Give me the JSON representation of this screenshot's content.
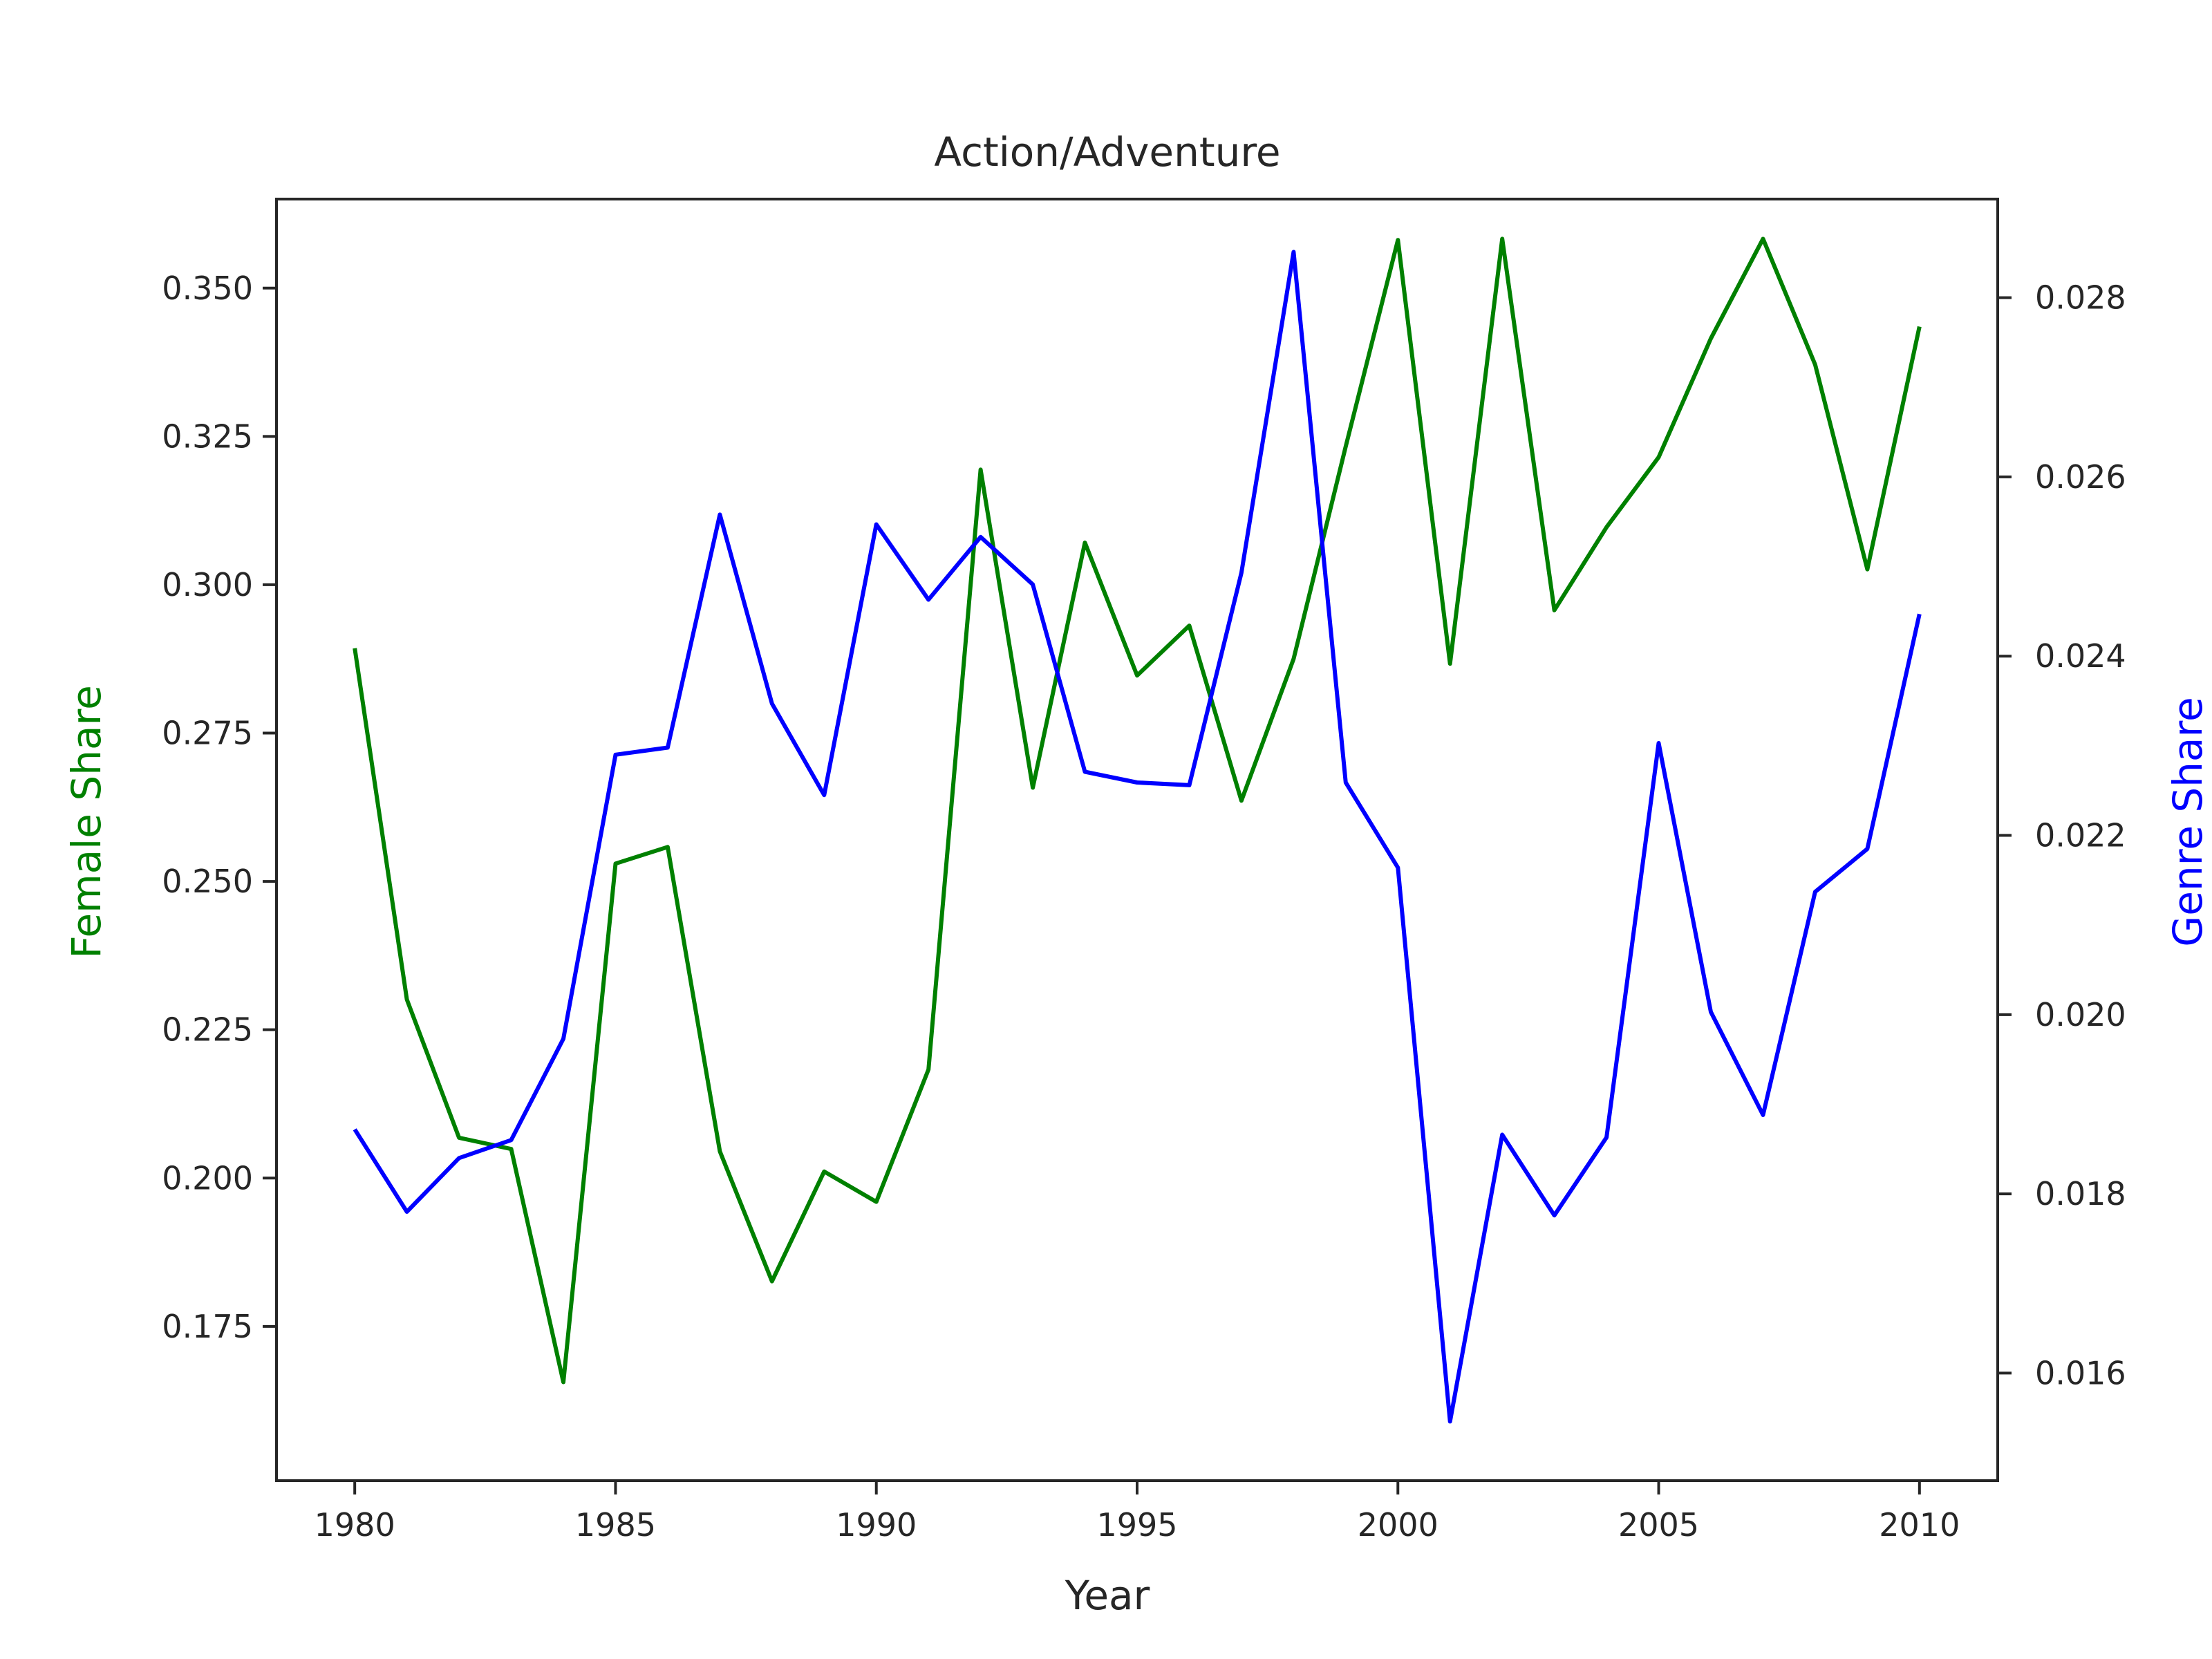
{
  "chart_data": {
    "type": "line",
    "title": "Action/Adventure",
    "xlabel": "Year",
    "ylabel_left": "Female Share",
    "ylabel_right": "Genre Share",
    "xlim": [
      1978.5,
      2011.5
    ],
    "ylim_left": [
      0.149,
      0.365
    ],
    "ylim_right": [
      0.0148,
      0.0291
    ],
    "xticks": [
      1980,
      1985,
      1990,
      1995,
      2000,
      2005,
      2010
    ],
    "yticks_left": [
      "0.175",
      "0.200",
      "0.225",
      "0.250",
      "0.275",
      "0.300",
      "0.325",
      "0.350"
    ],
    "yticks_right": [
      "0.016",
      "0.018",
      "0.020",
      "0.022",
      "0.024",
      "0.026",
      "0.028"
    ],
    "grid": false,
    "x": [
      1980,
      1981,
      1982,
      1983,
      1984,
      1985,
      1986,
      1987,
      1988,
      1989,
      1990,
      1991,
      1992,
      1993,
      1994,
      1995,
      1996,
      1997,
      1998,
      1999,
      2000,
      2001,
      2002,
      2003,
      2004,
      2005,
      2006,
      2007,
      2008,
      2009,
      2010
    ],
    "series": [
      {
        "name": "Female Share",
        "axis": "left",
        "color": "#008000",
        "values": [
          0.2893,
          0.2301,
          0.2068,
          0.2049,
          0.1656,
          0.253,
          0.2558,
          0.2045,
          0.1826,
          0.2011,
          0.196,
          0.2183,
          0.3194,
          0.2658,
          0.3071,
          0.2847,
          0.2931,
          0.2636,
          0.2875,
          0.3233,
          0.3581,
          0.2867,
          0.3583,
          0.2957,
          0.3097,
          0.3215,
          0.3415,
          0.3583,
          0.3371,
          0.3026,
          0.3435
        ]
      },
      {
        "name": "Genre Share",
        "axis": "right",
        "color": "#0000ff",
        "values": [
          0.01872,
          0.0178,
          0.0184,
          0.0186,
          0.01973,
          0.0229,
          0.02298,
          0.02558,
          0.02347,
          0.02245,
          0.02547,
          0.02463,
          0.02533,
          0.0248,
          0.02271,
          0.02259,
          0.02256,
          0.02493,
          0.02851,
          0.02259,
          0.02164,
          0.01546,
          0.01866,
          0.01776,
          0.01863,
          0.02303,
          0.02003,
          0.01888,
          0.02137,
          0.02185,
          0.02447
        ]
      }
    ]
  }
}
